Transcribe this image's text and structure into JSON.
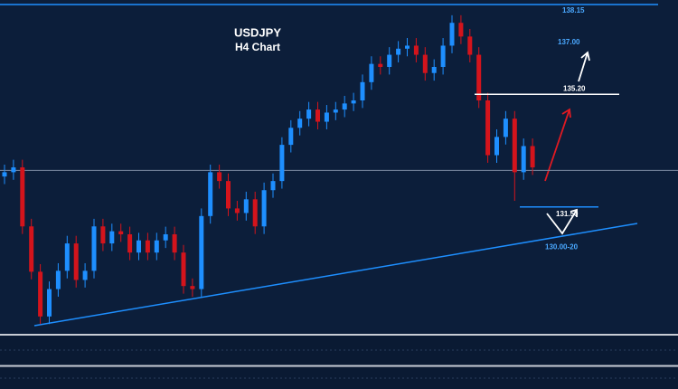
{
  "chart_data": {
    "type": "candlestick",
    "title": "USDJPY",
    "subtitle": "H4 Chart",
    "categories": [
      null,
      null,
      null,
      null,
      null,
      null,
      null,
      null,
      null,
      null,
      null,
      null,
      null,
      null,
      null,
      null,
      null,
      null,
      null,
      null,
      null,
      null,
      null,
      null,
      null,
      null,
      null,
      null,
      null,
      null,
      null,
      null,
      null,
      null,
      null,
      null,
      null,
      null,
      null,
      null,
      null,
      null,
      null,
      null,
      null,
      null,
      null,
      null,
      null,
      null,
      null,
      null,
      null,
      null,
      null,
      null,
      null,
      null,
      null,
      null
    ],
    "open": [
      132.5,
      132.64,
      132.8,
      130.86,
      129.37,
      127.9,
      128.8,
      129.4,
      130.3,
      129.1,
      129.4,
      130.86,
      130.3,
      130.7,
      130.6,
      130.0,
      130.4,
      130.0,
      130.4,
      130.6,
      130.0,
      128.9,
      128.8,
      131.2,
      132.64,
      132.35,
      131.45,
      131.3,
      131.75,
      130.86,
      132.05,
      132.35,
      133.54,
      134.1,
      134.4,
      134.7,
      134.3,
      134.6,
      134.7,
      134.9,
      135.0,
      135.6,
      136.2,
      136.1,
      136.5,
      136.7,
      136.8,
      136.5,
      135.9,
      136.1,
      136.8,
      137.55,
      137.1,
      136.5,
      135.0,
      133.2,
      133.8,
      134.4,
      132.64,
      133.5
    ],
    "high": [
      132.89,
      133.05,
      133.05,
      131.11,
      129.62,
      129.05,
      129.65,
      130.55,
      130.55,
      129.65,
      131.11,
      131.11,
      130.95,
      130.95,
      130.85,
      130.65,
      130.65,
      130.65,
      130.85,
      130.85,
      130.25,
      129.15,
      131.45,
      132.89,
      132.89,
      132.6,
      131.7,
      132.0,
      132.0,
      132.3,
      132.6,
      133.79,
      134.35,
      134.65,
      134.95,
      134.95,
      134.85,
      134.95,
      135.15,
      135.25,
      135.85,
      136.45,
      136.45,
      136.75,
      136.95,
      137.05,
      137.05,
      136.75,
      136.35,
      137.05,
      137.8,
      137.8,
      137.35,
      136.75,
      135.25,
      134.05,
      134.65,
      134.65,
      133.75,
      133.75
    ],
    "low": [
      132.25,
      132.39,
      130.61,
      129.12,
      127.65,
      127.65,
      128.55,
      129.15,
      128.85,
      128.85,
      129.15,
      130.05,
      130.05,
      130.35,
      129.75,
      129.75,
      129.75,
      129.75,
      130.15,
      129.75,
      128.65,
      128.55,
      128.55,
      130.95,
      132.1,
      131.2,
      131.05,
      131.05,
      130.61,
      130.61,
      131.8,
      132.1,
      133.29,
      133.85,
      134.15,
      134.05,
      134.05,
      134.35,
      134.45,
      134.65,
      134.75,
      135.35,
      135.85,
      135.85,
      136.25,
      136.45,
      136.25,
      135.65,
      135.65,
      135.85,
      136.55,
      136.85,
      136.25,
      134.75,
      132.95,
      132.95,
      133.55,
      131.7,
      132.39,
      132.55
    ],
    "close": [
      132.64,
      132.8,
      130.86,
      129.37,
      127.9,
      128.8,
      129.4,
      130.3,
      129.1,
      129.4,
      130.86,
      130.3,
      130.7,
      130.6,
      130.0,
      130.4,
      130.0,
      130.4,
      130.6,
      130.0,
      128.9,
      128.8,
      131.2,
      132.64,
      132.35,
      131.45,
      131.3,
      131.75,
      130.86,
      132.05,
      132.35,
      133.54,
      134.1,
      134.4,
      134.7,
      134.3,
      134.6,
      134.7,
      134.9,
      135.0,
      135.6,
      136.2,
      136.1,
      136.5,
      136.7,
      136.8,
      136.5,
      135.9,
      136.1,
      136.8,
      137.55,
      137.1,
      136.5,
      135.0,
      133.2,
      133.8,
      134.4,
      132.64,
      133.5,
      132.8
    ],
    "up_color": "#1e8fff",
    "down_color": "#d4141c",
    "ylim": [
      127.3,
      138.3
    ],
    "price_line": 132.7,
    "levels": [
      {
        "value": 138.15,
        "label": "138.15"
      },
      {
        "value": 137.0,
        "label": "137.00"
      },
      {
        "value": 135.2,
        "label": "135.20"
      },
      {
        "value": 131.5,
        "label": "131.50"
      },
      {
        "value": 130.0,
        "label": "130.00-20"
      }
    ]
  }
}
